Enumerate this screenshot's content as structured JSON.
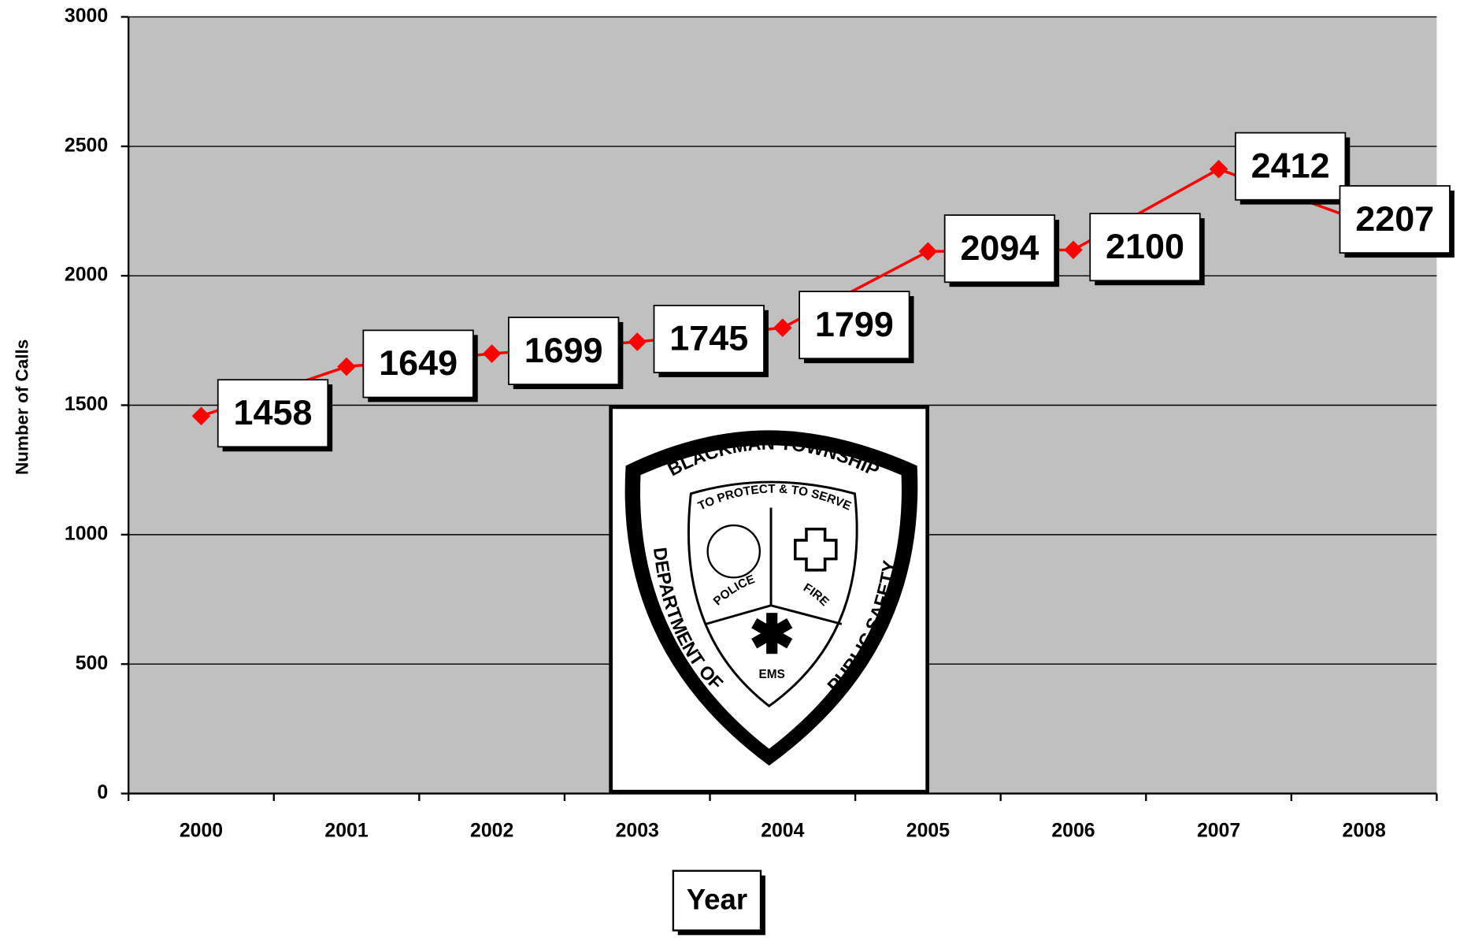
{
  "chart_data": {
    "type": "line",
    "x_label": "Year",
    "y_label": "Number of Calls",
    "categories": [
      "2000",
      "2001",
      "2002",
      "2003",
      "2004",
      "2005",
      "2006",
      "2007",
      "2008"
    ],
    "series": [
      {
        "name": "Number of Calls",
        "color": "#ff0000",
        "values": [
          1458,
          1649,
          1699,
          1745,
          1799,
          2094,
          2100,
          2412,
          2207
        ]
      }
    ],
    "ylim": [
      0,
      3000
    ],
    "yticks": [
      0,
      500,
      1000,
      1500,
      2000,
      2500,
      3000
    ],
    "grid": true,
    "plot_background": "#c0c0c0",
    "logo": {
      "top": "BLACKMAN TOWNSHIP",
      "motto": "TO PROTECT & TO SERVE",
      "left": "DEPARTMENT OF",
      "right": "PUBLIC SAFETY",
      "police": "POLICE",
      "fire": "FIRE",
      "ems": "EMS"
    }
  }
}
